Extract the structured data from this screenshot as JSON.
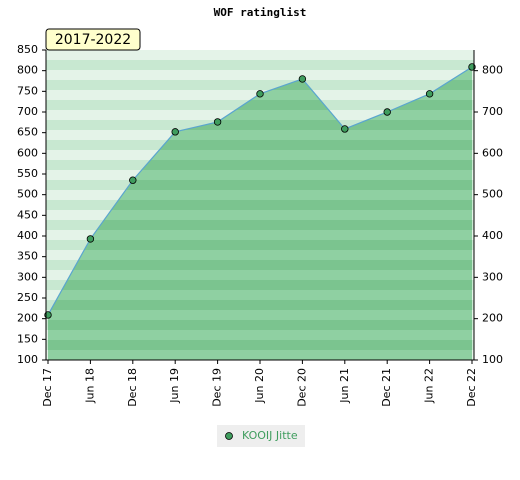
{
  "chart_data": {
    "type": "area",
    "title": "WOF ratinglist",
    "annotation": "2017-2022",
    "categories": [
      "Dec 17",
      "Jun 18",
      "Dec 18",
      "Jun 19",
      "Dec 19",
      "Jun 20",
      "Dec 20",
      "Jun 21",
      "Dec 21",
      "Jun 22",
      "Dec 22"
    ],
    "series": [
      {
        "name": "KOOIJ Jitte",
        "color": "#3f9d5e",
        "values": [
          209,
          393,
          535,
          652,
          676,
          744,
          780,
          659,
          700,
          744,
          809
        ]
      }
    ],
    "ylim": [
      100,
      850
    ],
    "yticks": [
      100,
      150,
      200,
      250,
      300,
      350,
      400,
      450,
      500,
      550,
      600,
      650,
      700,
      750,
      800,
      850
    ],
    "y2lim": [
      100,
      850
    ],
    "y2ticks": [
      100,
      200,
      300,
      400,
      500,
      600,
      700,
      800
    ],
    "legend": "bottom"
  }
}
